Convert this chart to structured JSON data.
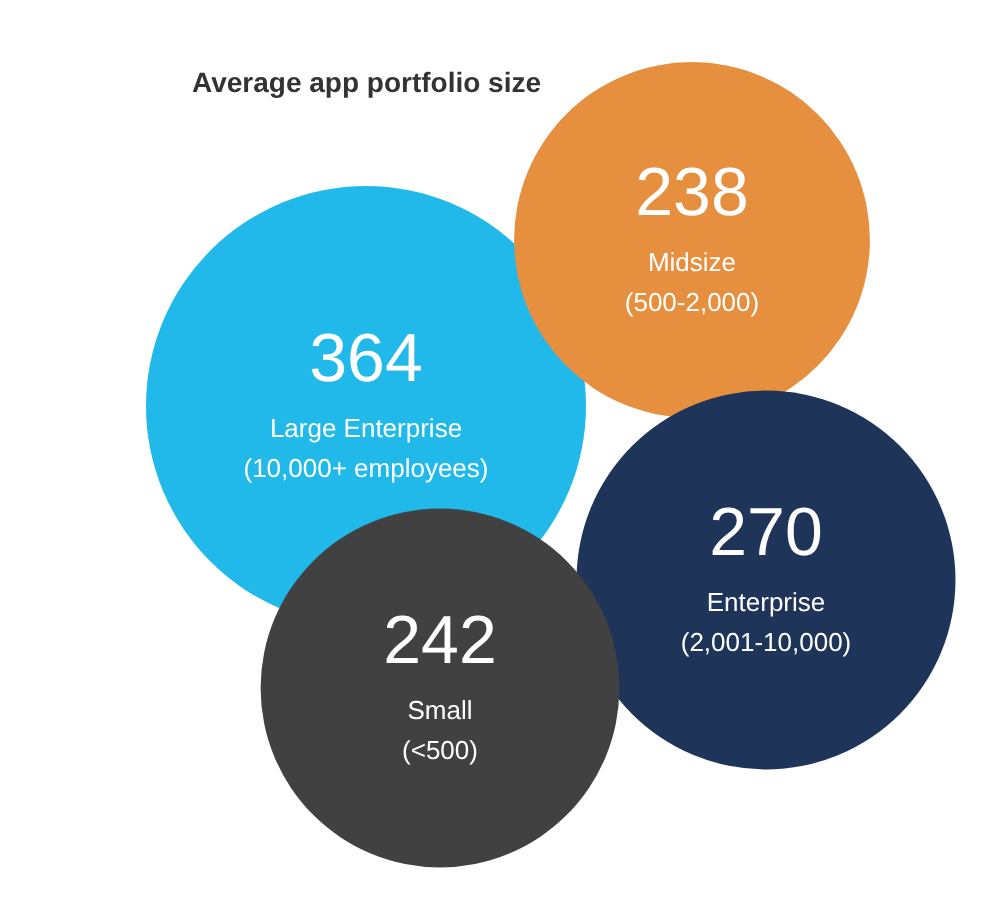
{
  "chart_data": {
    "type": "other",
    "title": "Average app portfolio size",
    "categories": [
      "Large Enterprise (10,000+ employees)",
      "Midsize (500-2,000)",
      "Enterprise (2,001-10,000)",
      "Small (<500)"
    ],
    "values": [
      364,
      238,
      270,
      242
    ],
    "colors": [
      "#21b9ea",
      "#e68f3f",
      "#1f3459",
      "#414141"
    ],
    "data_labels": true
  }
}
